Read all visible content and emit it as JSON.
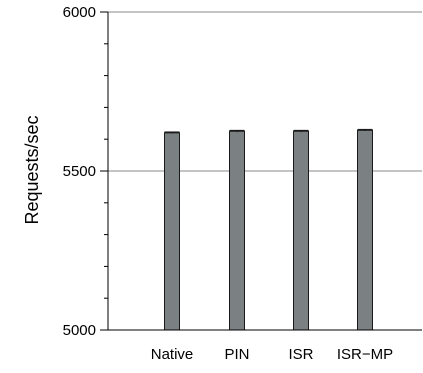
{
  "chart_data": {
    "type": "bar",
    "categories": [
      "Native",
      "PIN",
      "ISR",
      "ISR−MP"
    ],
    "values": [
      5620,
      5625,
      5625,
      5628
    ],
    "error": [
      2,
      2,
      2,
      2
    ],
    "title": "",
    "xlabel": "",
    "ylabel": "Requests/sec",
    "ylim": [
      5000,
      6000
    ],
    "yticks": [
      5000,
      5500,
      6000
    ],
    "ytick_labels": [
      "5000",
      "5500",
      "6000"
    ],
    "grid": "horizontal at 5500 and 6000",
    "legend": "none",
    "colors": {
      "bar_fill": "#7b8083",
      "bar_edge": "#1a1a1a",
      "axis": "#000000",
      "grid": "#8a8a8a"
    }
  }
}
